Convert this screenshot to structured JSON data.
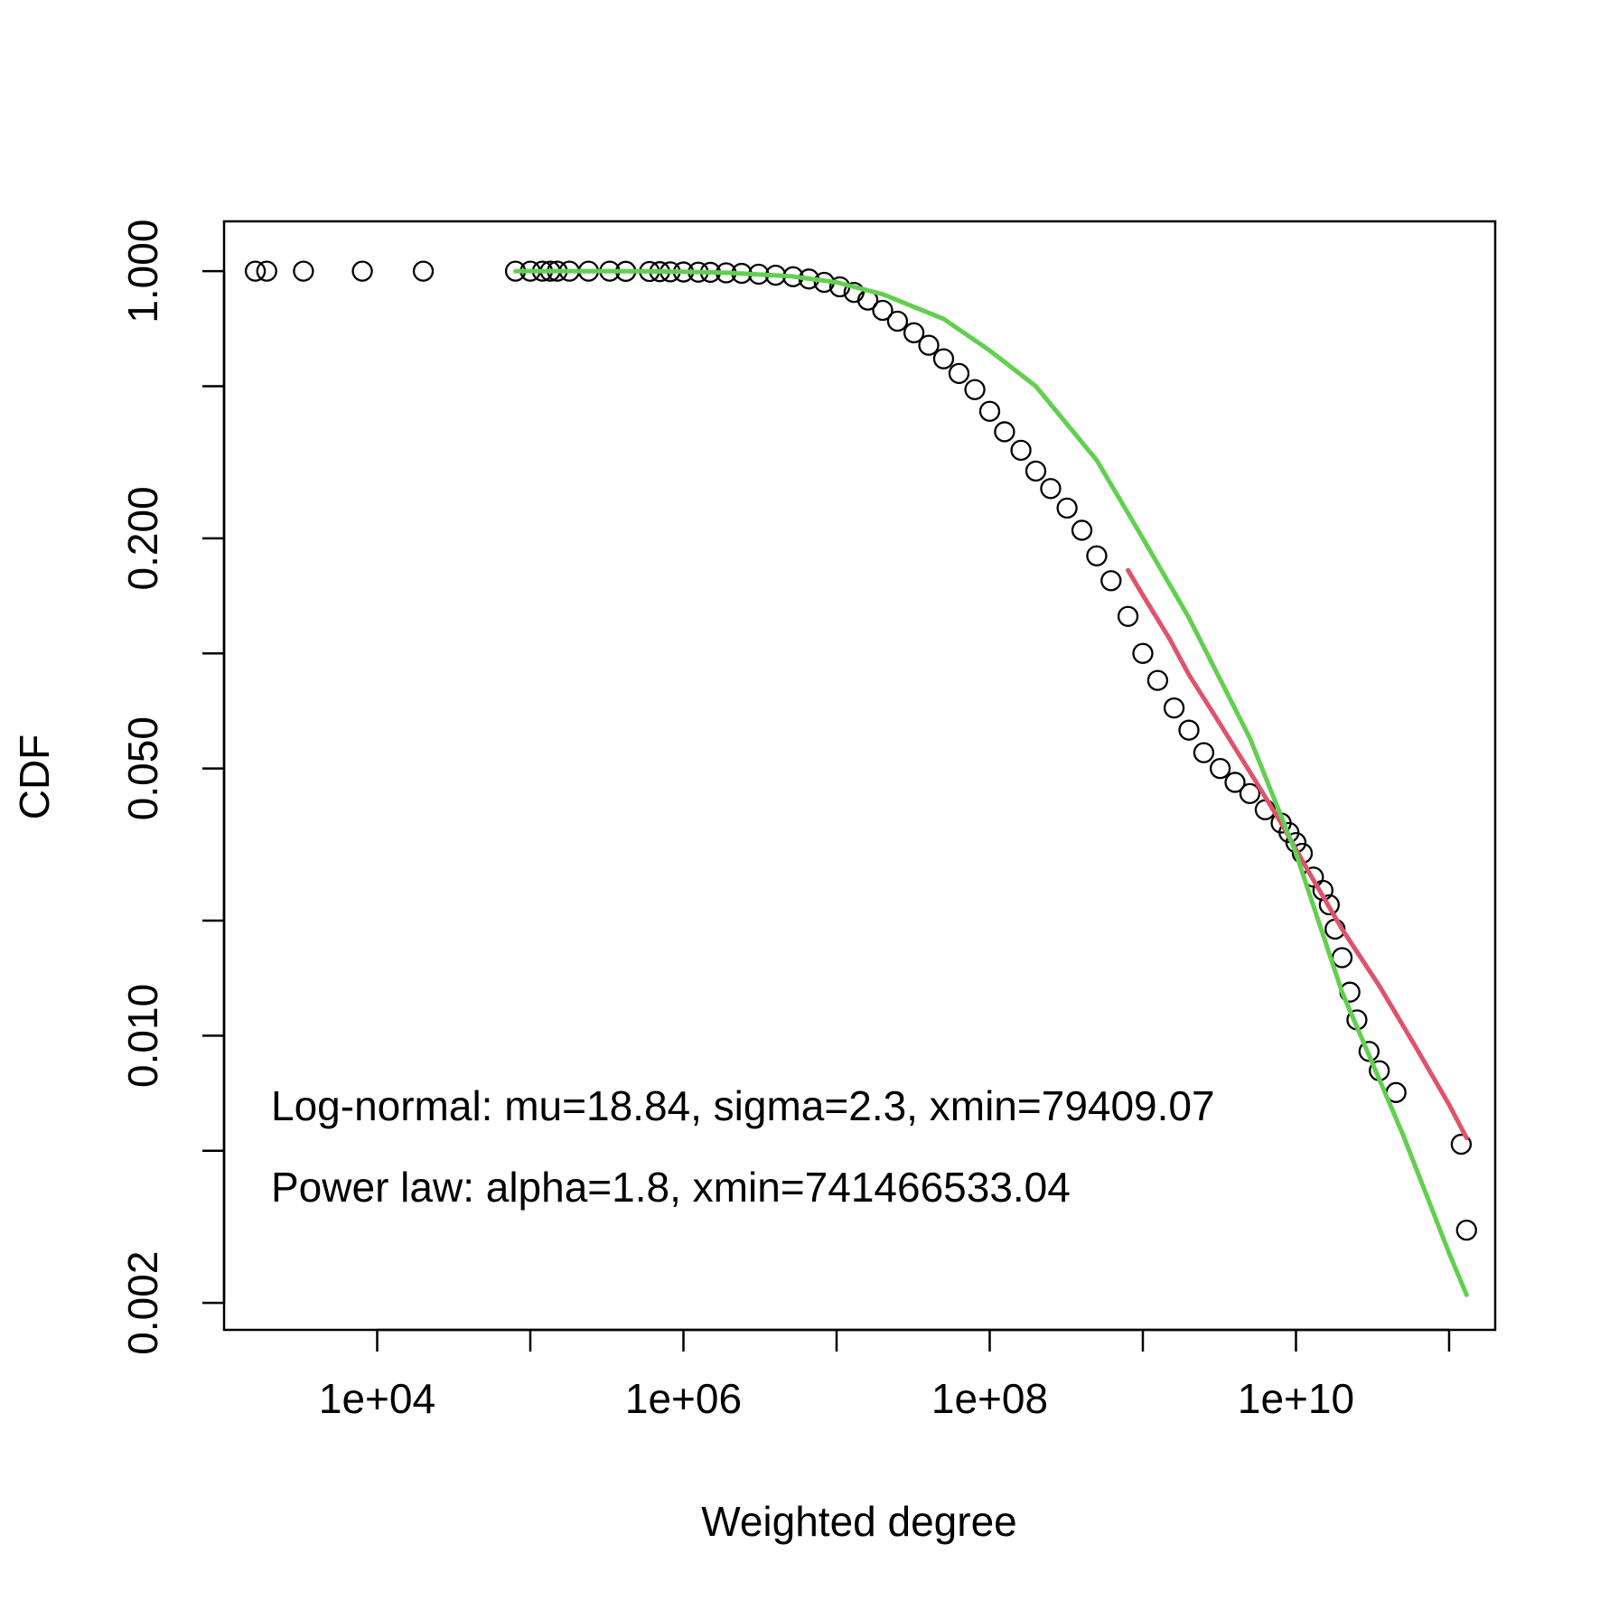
{
  "chart_data": {
    "type": "scatter",
    "title": "",
    "xlabel": "Weighted degree",
    "ylabel": "CDF",
    "x_scale": "log10",
    "y_scale": "log10",
    "xlim": [
      1000,
      200000000000
    ],
    "ylim": [
      0.0017,
      1.35
    ],
    "x_ticks": [
      {
        "value": 10000,
        "label": "1e+04"
      },
      {
        "value": 100000,
        "label": ""
      },
      {
        "value": 1000000,
        "label": "1e+06"
      },
      {
        "value": 10000000,
        "label": ""
      },
      {
        "value": 100000000,
        "label": "1e+08"
      },
      {
        "value": 1000000000,
        "label": ""
      },
      {
        "value": 10000000000,
        "label": "1e+10"
      },
      {
        "value": 100000000000,
        "label": ""
      }
    ],
    "y_ticks": [
      {
        "value": 1.0,
        "label": "1.000"
      },
      {
        "value": 0.5,
        "label": ""
      },
      {
        "value": 0.2,
        "label": "0.200"
      },
      {
        "value": 0.1,
        "label": ""
      },
      {
        "value": 0.05,
        "label": "0.050"
      },
      {
        "value": 0.02,
        "label": ""
      },
      {
        "value": 0.01,
        "label": "0.010"
      },
      {
        "value": 0.005,
        "label": ""
      },
      {
        "value": 0.002,
        "label": "0.002"
      }
    ],
    "grid": false,
    "annotations": [
      "Log-normal: mu=18.84, sigma=2.3, xmin=79409.07",
      "Power law: alpha=1.8, xmin=741466533.04"
    ],
    "series": [
      {
        "kind": "points",
        "color": "#000000",
        "x": [
          1600,
          1900,
          3300,
          8000,
          20000,
          80000,
          100000,
          120000,
          135000,
          150000,
          180000,
          240000,
          330000,
          420000,
          600000,
          700000,
          820000,
          1000000,
          1250000,
          1500000,
          1900000,
          2400000,
          3100000,
          4000000,
          5200000,
          6600000,
          8300000,
          10500000,
          13000000,
          16000000,
          20000000,
          25000000,
          32000000,
          40000000,
          50000000,
          63000000,
          80000000,
          100000000,
          125000000,
          160000000,
          200000000,
          250000000,
          320000000,
          400000000,
          500000000,
          620000000,
          800000000,
          1000000000,
          1250000000,
          1600000000,
          2000000000,
          2500000000,
          3200000000,
          4000000000,
          5000000000,
          6300000000,
          8000000000,
          9000000000,
          10000000000,
          11000000000,
          13000000000,
          15000000000,
          16500000000,
          18000000000,
          20000000000,
          22500000000,
          25000000000,
          30000000000,
          35000000000,
          45000000000,
          120000000000,
          130000000000
        ],
        "y": [
          1.0,
          1.0,
          1.0,
          1.0,
          1.0,
          1.0,
          1.0,
          1.0,
          1.0,
          1.0,
          1.0,
          1.0,
          1.0,
          0.999,
          0.998,
          0.997,
          0.996,
          0.995,
          0.994,
          0.993,
          0.99,
          0.987,
          0.982,
          0.976,
          0.967,
          0.954,
          0.935,
          0.91,
          0.88,
          0.84,
          0.79,
          0.74,
          0.69,
          0.64,
          0.59,
          0.54,
          0.49,
          0.43,
          0.38,
          0.34,
          0.3,
          0.27,
          0.24,
          0.21,
          0.18,
          0.155,
          0.125,
          0.1,
          0.085,
          0.072,
          0.063,
          0.055,
          0.05,
          0.046,
          0.043,
          0.039,
          0.036,
          0.034,
          0.032,
          0.03,
          0.026,
          0.024,
          0.022,
          0.019,
          0.016,
          0.013,
          0.011,
          0.0091,
          0.0081,
          0.0071,
          0.0052,
          0.0031
        ]
      },
      {
        "kind": "line",
        "name": "",
        "color": "#DF536B",
        "x": [
          800000000,
          1000000000,
          1500000000,
          2000000000,
          3000000000,
          5000000000,
          8000000000,
          12000000000,
          20000000000,
          35000000000,
          60000000000,
          100000000000,
          130000000000
        ],
        "y": [
          0.165,
          0.142,
          0.109,
          0.088,
          0.068,
          0.049,
          0.036,
          0.027,
          0.019,
          0.0135,
          0.0094,
          0.0066,
          0.0054
        ]
      },
      {
        "kind": "line",
        "name": "",
        "color": "#61D04F",
        "x": [
          80000,
          200000,
          500000,
          1000000,
          2000000,
          5000000,
          10000000,
          20000000,
          50000000,
          100000000,
          200000000,
          500000000,
          1000000000,
          2000000000,
          5000000000,
          10000000000,
          20000000000,
          50000000000,
          100000000000,
          130000000000
        ],
        "y": [
          1.0,
          1.0,
          0.999,
          0.997,
          0.99,
          0.97,
          0.935,
          0.87,
          0.75,
          0.62,
          0.5,
          0.32,
          0.2,
          0.124,
          0.06,
          0.03,
          0.013,
          0.0055,
          0.0027,
          0.0021
        ]
      }
    ]
  }
}
